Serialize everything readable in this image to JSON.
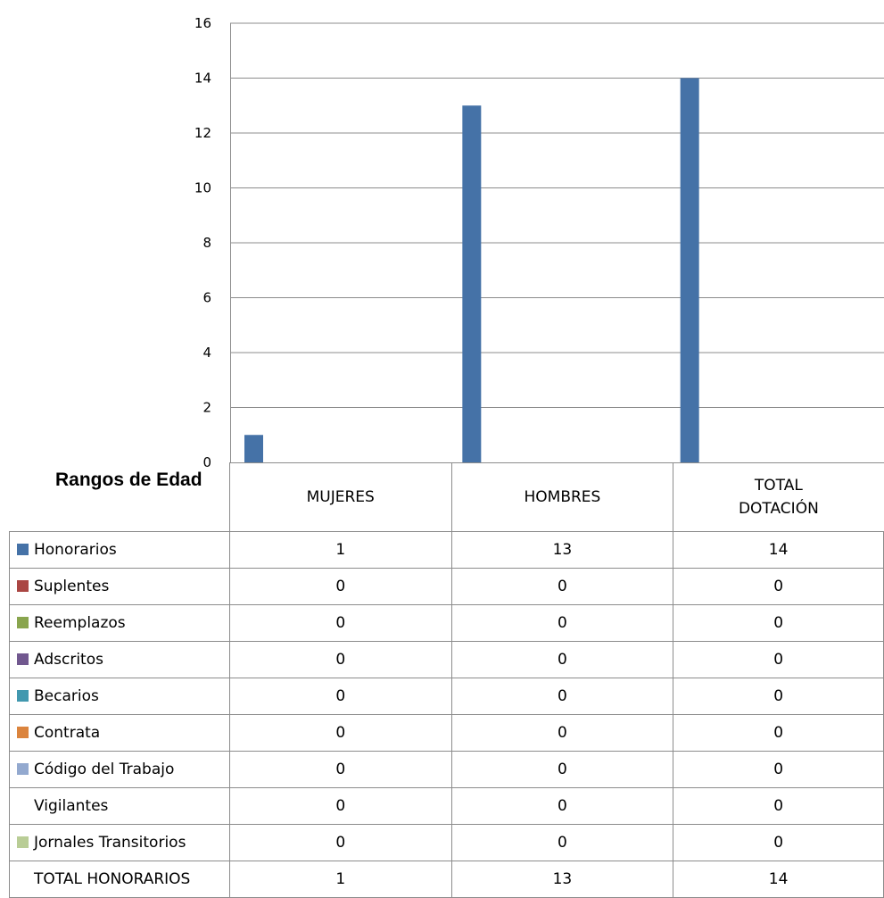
{
  "chart_data": {
    "type": "bar",
    "categories": [
      "MUJERES",
      "HOMBRES",
      "TOTAL DOTACIÓN"
    ],
    "category_labels": [
      [
        "MUJERES"
      ],
      [
        "HOMBRES"
      ],
      [
        "TOTAL",
        "DOTACIÓN"
      ]
    ],
    "ylim": [
      0,
      16
    ],
    "yticks": [
      "0",
      "2",
      "4",
      "6",
      "8",
      "10",
      "12",
      "14",
      "16"
    ],
    "grid": true,
    "table_title": "Rangos de Edad",
    "series": [
      {
        "name": "Honorarios",
        "color": "#4572a7",
        "values": [
          1,
          13,
          14
        ],
        "display": [
          "1",
          "13",
          "14"
        ]
      },
      {
        "name": "Suplentes",
        "color": "#aa4643",
        "values": [
          0,
          0,
          0
        ],
        "display": [
          "0",
          "0",
          "0"
        ]
      },
      {
        "name": "Reemplazos",
        "color": "#89a54e",
        "values": [
          0,
          0,
          0
        ],
        "display": [
          "0",
          "0",
          "0"
        ]
      },
      {
        "name": "Adscritos",
        "color": "#71588f",
        "values": [
          0,
          0,
          0
        ],
        "display": [
          "0",
          "0",
          "0"
        ]
      },
      {
        "name": "Becarios",
        "color": "#4198af",
        "values": [
          0,
          0,
          0
        ],
        "display": [
          "0",
          "0",
          "0"
        ]
      },
      {
        "name": "Contrata",
        "color": "#db843d",
        "values": [
          0,
          0,
          0
        ],
        "display": [
          "0",
          "0",
          "0"
        ]
      },
      {
        "name": "Código del Trabajo",
        "color": "#93a9cf",
        "values": [
          0,
          0,
          0
        ],
        "display": [
          "0",
          "0",
          "0"
        ]
      },
      {
        "name": "Vigilantes",
        "color": "",
        "values": [
          0,
          0,
          0
        ],
        "display": [
          "0",
          "0",
          "0"
        ]
      },
      {
        "name": "Jornales Transitorios",
        "color": "#b9cd96",
        "values": [
          0,
          0,
          0
        ],
        "display": [
          "0",
          "0",
          "0"
        ]
      }
    ],
    "total_row": {
      "name": "TOTAL HONORARIOS",
      "values": [
        1,
        13,
        14
      ],
      "display": [
        "1",
        "13",
        "14"
      ]
    }
  }
}
